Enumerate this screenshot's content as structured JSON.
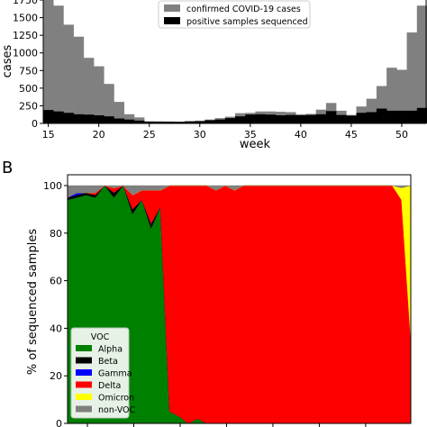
{
  "panel_b_label": "B",
  "chart_data": [
    {
      "type": "bar",
      "xlabel": "week",
      "ylabel": "cases",
      "xlim": [
        14.5,
        52.5
      ],
      "ylim": [
        0,
        1750
      ],
      "xticks": [
        "15",
        "20",
        "25",
        "30",
        "35",
        "40",
        "45",
        "50"
      ],
      "yticks": [
        "0",
        "250",
        "500",
        "750",
        "1000",
        "1250",
        "1500",
        "1750"
      ],
      "categories": [
        15,
        16,
        17,
        18,
        19,
        20,
        21,
        22,
        23,
        24,
        25,
        26,
        27,
        28,
        29,
        30,
        31,
        32,
        33,
        34,
        35,
        36,
        37,
        38,
        39,
        40,
        41,
        42,
        43,
        44,
        45,
        46,
        47,
        48,
        49,
        50,
        51,
        52
      ],
      "series": [
        {
          "name": "confirmed COVID-19 cases",
          "color": "#808080",
          "values": [
            1760,
            1670,
            1400,
            1230,
            930,
            810,
            560,
            305,
            130,
            85,
            30,
            28,
            28,
            25,
            33,
            40,
            55,
            75,
            95,
            145,
            150,
            170,
            170,
            165,
            160,
            130,
            135,
            195,
            290,
            180,
            120,
            240,
            350,
            530,
            790,
            760,
            1290,
            1670
          ]
        },
        {
          "name": "positive samples sequenced",
          "color": "#000000",
          "values": [
            190,
            170,
            150,
            130,
            125,
            115,
            100,
            70,
            55,
            40,
            25,
            25,
            22,
            22,
            28,
            30,
            45,
            55,
            75,
            100,
            125,
            130,
            125,
            115,
            120,
            115,
            120,
            130,
            175,
            120,
            110,
            150,
            160,
            210,
            180,
            180,
            180,
            220
          ]
        }
      ],
      "legend": "top-right",
      "grid": false
    },
    {
      "type": "area",
      "stacked": true,
      "xlabel": "",
      "ylabel": "% of sequenced samples",
      "ylim": [
        0,
        100
      ],
      "yticks": [
        "0",
        "20",
        "40",
        "60",
        "80",
        "100"
      ],
      "legend_title": "VOC",
      "legend": "lower-left",
      "x": [
        15,
        16,
        17,
        18,
        19,
        20,
        21,
        22,
        23,
        24,
        25,
        26,
        27,
        28,
        29,
        30,
        31,
        32,
        33,
        34,
        35,
        36,
        37,
        38,
        39,
        40,
        41,
        42,
        43,
        44,
        45,
        46,
        47,
        48,
        49,
        50,
        51,
        52
      ],
      "series": [
        {
          "name": "Alpha",
          "color": "#008000",
          "values": [
            94,
            95,
            96,
            95,
            100,
            95,
            100,
            88,
            94,
            82,
            91,
            5,
            3,
            0,
            2,
            0,
            0,
            0,
            0,
            0,
            0,
            0,
            0,
            0,
            0,
            0,
            0,
            0,
            0,
            0,
            0,
            0,
            0,
            0,
            0,
            0,
            0,
            0
          ]
        },
        {
          "name": "Beta",
          "color": "#000000",
          "values": [
            1,
            1,
            1,
            1,
            0,
            2,
            0,
            2,
            0,
            2,
            0,
            0,
            0,
            0,
            0,
            0,
            0,
            0,
            0,
            0,
            0,
            0,
            0,
            0,
            0,
            0,
            0,
            0,
            0,
            0,
            0,
            0,
            0,
            0,
            0,
            0,
            0,
            0
          ]
        },
        {
          "name": "Gamma",
          "color": "#0000ff",
          "values": [
            0,
            1,
            0,
            0,
            0,
            0,
            0,
            0,
            0,
            0,
            0,
            0,
            0,
            0,
            0,
            0,
            0,
            0,
            0,
            0,
            0,
            0,
            0,
            0,
            0,
            0,
            0,
            0,
            0,
            0,
            0,
            0,
            0,
            0,
            0,
            0,
            0,
            0
          ]
        },
        {
          "name": "Delta",
          "color": "#ff0000",
          "values": [
            0,
            0,
            0,
            1,
            0,
            2,
            0,
            6,
            4,
            14,
            7,
            95,
            97,
            100,
            98,
            100,
            98,
            100,
            98,
            100,
            100,
            100,
            100,
            100,
            100,
            100,
            100,
            100,
            100,
            100,
            100,
            100,
            100,
            100,
            100,
            100,
            94,
            35
          ]
        },
        {
          "name": "Omicron",
          "color": "#ffff00",
          "values": [
            0,
            0,
            0,
            0,
            0,
            0,
            0,
            0,
            0,
            0,
            0,
            0,
            0,
            0,
            0,
            0,
            0,
            0,
            0,
            0,
            0,
            0,
            0,
            0,
            0,
            0,
            0,
            0,
            0,
            0,
            0,
            0,
            0,
            0,
            0,
            0,
            5,
            65
          ]
        },
        {
          "name": "non-VOC",
          "color": "#808080",
          "values": [
            5,
            3,
            3,
            3,
            0,
            1,
            0,
            4,
            2,
            2,
            2,
            0,
            0,
            0,
            0,
            0,
            2,
            0,
            2,
            0,
            0,
            0,
            0,
            0,
            0,
            0,
            0,
            0,
            0,
            0,
            0,
            0,
            0,
            0,
            0,
            0,
            1,
            0
          ]
        }
      ]
    }
  ]
}
